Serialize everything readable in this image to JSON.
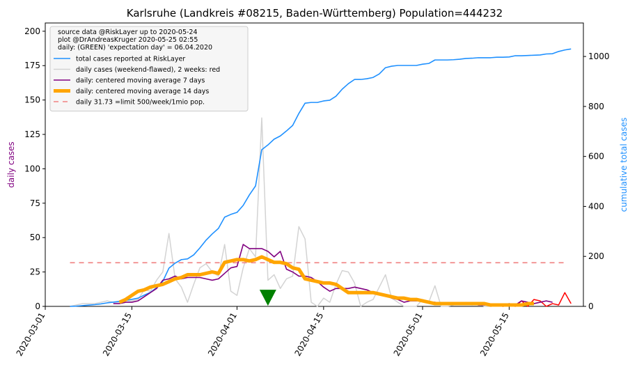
{
  "chart_data": {
    "type": "line",
    "title": "Karlsruhe (Landkreis #08215, Baden-Württemberg) Population=444232",
    "ylabel": "daily cases",
    "ylabel_color": "#800080",
    "y2label": "cumulative total cases",
    "y2label_color": "#1e90ff",
    "xlim": [
      "2020-03-01",
      "2020-05-27"
    ],
    "xticks": [
      "2020-03-01",
      "2020-03-15",
      "2020-04-01",
      "2020-04-15",
      "2020-05-01",
      "2020-05-15"
    ],
    "ylim": [
      0,
      206
    ],
    "yticks": [
      0,
      25,
      50,
      75,
      100,
      125,
      150,
      175,
      200
    ],
    "y2lim": [
      0,
      1134
    ],
    "y2ticks": [
      0,
      200,
      400,
      600,
      800,
      1000
    ],
    "legend_position": "upper left",
    "legend_header": [
      "source data @RiskLayer up to 2020-05-24",
      "plot @DrAndreasKruger 2020-05-25 02:55",
      "daily: (GREEN) 'expectation day' = 06.04.2020"
    ],
    "x": [
      "2020-03-05",
      "2020-03-06",
      "2020-03-07",
      "2020-03-08",
      "2020-03-09",
      "2020-03-10",
      "2020-03-11",
      "2020-03-12",
      "2020-03-13",
      "2020-03-14",
      "2020-03-15",
      "2020-03-16",
      "2020-03-17",
      "2020-03-18",
      "2020-03-19",
      "2020-03-20",
      "2020-03-21",
      "2020-03-22",
      "2020-03-23",
      "2020-03-24",
      "2020-03-25",
      "2020-03-26",
      "2020-03-27",
      "2020-03-28",
      "2020-03-29",
      "2020-03-30",
      "2020-03-31",
      "2020-04-01",
      "2020-04-02",
      "2020-04-03",
      "2020-04-04",
      "2020-04-05",
      "2020-04-06",
      "2020-04-07",
      "2020-04-08",
      "2020-04-09",
      "2020-04-10",
      "2020-04-11",
      "2020-04-12",
      "2020-04-13",
      "2020-04-14",
      "2020-04-15",
      "2020-04-16",
      "2020-04-17",
      "2020-04-18",
      "2020-04-19",
      "2020-04-20",
      "2020-04-21",
      "2020-04-22",
      "2020-04-23",
      "2020-04-24",
      "2020-04-25",
      "2020-04-26",
      "2020-04-27",
      "2020-04-28",
      "2020-04-29",
      "2020-04-30",
      "2020-05-01",
      "2020-05-02",
      "2020-05-03",
      "2020-05-04",
      "2020-05-05",
      "2020-05-06",
      "2020-05-07",
      "2020-05-08",
      "2020-05-09",
      "2020-05-10",
      "2020-05-11",
      "2020-05-12",
      "2020-05-13",
      "2020-05-14",
      "2020-05-15",
      "2020-05-16",
      "2020-05-17",
      "2020-05-18",
      "2020-05-19",
      "2020-05-20",
      "2020-05-21",
      "2020-05-22",
      "2020-05-23",
      "2020-05-24",
      "2020-05-25"
    ],
    "series": [
      {
        "name": "total cases reported at RiskLayer",
        "color": "#1e90ff",
        "axis": "y2",
        "width": 1.6,
        "values": [
          0,
          1,
          3,
          5,
          7,
          10,
          14,
          17,
          20,
          24,
          28,
          33,
          45,
          56,
          75,
          100,
          153,
          173,
          187,
          190,
          206,
          234,
          265,
          290,
          312,
          357,
          368,
          376,
          404,
          446,
          482,
          627,
          646,
          669,
          682,
          702,
          724,
          772,
          813,
          816,
          816,
          822,
          825,
          841,
          869,
          891,
          908,
          908,
          911,
          916,
          930,
          955,
          961,
          964,
          964,
          964,
          964,
          969,
          972,
          986,
          986,
          986,
          987,
          989,
          992,
          993,
          995,
          995,
          995,
          997,
          997,
          998,
          1003,
          1003,
          1004,
          1005,
          1006,
          1010,
          1011,
          1020,
          1026,
          1030
        ]
      },
      {
        "name": "daily cases (weekend-flawed), 2 weeks: red",
        "color": "#d3d3d3",
        "width": 1.5,
        "values": [
          0,
          1,
          2,
          2,
          2,
          3,
          4,
          3,
          3,
          4,
          4,
          5,
          12,
          11,
          19,
          25,
          53,
          20,
          14,
          3,
          16,
          28,
          31,
          25,
          22,
          45,
          11,
          8,
          28,
          42,
          36,
          137,
          19,
          23,
          13,
          20,
          22,
          58,
          49,
          3,
          0,
          6,
          3,
          16,
          26,
          25,
          17,
          0,
          3,
          5,
          14,
          23,
          6,
          3,
          0,
          0,
          0,
          5,
          3,
          15,
          0,
          0,
          1,
          2,
          3,
          1,
          2,
          0,
          0,
          null,
          null,
          null,
          null,
          null,
          null,
          null,
          null,
          null,
          null,
          null,
          null,
          null
        ]
      },
      {
        "color": "#ff0000",
        "width": 1.5,
        "x": [
          "2020-05-12",
          "2020-05-13",
          "2020-05-14",
          "2020-05-15",
          "2020-05-16",
          "2020-05-17",
          "2020-05-18",
          "2020-05-19",
          "2020-05-20",
          "2020-05-21",
          "2020-05-22",
          "2020-05-23",
          "2020-05-24",
          "2020-05-25"
        ],
        "values": [
          0,
          1,
          0,
          1,
          0,
          4,
          0,
          5,
          4,
          0,
          2,
          1,
          10,
          2
        ]
      },
      {
        "name": "daily: centered moving average 7 days",
        "color": "#800080",
        "width": 1.6,
        "values": [
          null,
          null,
          null,
          null,
          null,
          null,
          null,
          2,
          2,
          3,
          3,
          4,
          7,
          10,
          13,
          19,
          20,
          22,
          20,
          21,
          21,
          21,
          20,
          19,
          20,
          24,
          28,
          29,
          45,
          42,
          42,
          42,
          40,
          36,
          40,
          27,
          25,
          22,
          22,
          21,
          18,
          14,
          11,
          13,
          13,
          13,
          14,
          13,
          12,
          10,
          9,
          8,
          6,
          5,
          3,
          4,
          4,
          4,
          3,
          3,
          2,
          2,
          2,
          2,
          2,
          2,
          1,
          1,
          1,
          1,
          1,
          2,
          1,
          4,
          3,
          2,
          3,
          4,
          3,
          null,
          null,
          null
        ]
      },
      {
        "name": "daily: centered moving average 14 days",
        "color": "#ffa500",
        "width": 5,
        "values": [
          null,
          null,
          null,
          null,
          null,
          null,
          null,
          null,
          3,
          5,
          8,
          11,
          12,
          14,
          15,
          16,
          18,
          20,
          21,
          23,
          23,
          23,
          24,
          25,
          24,
          32,
          33,
          34,
          34,
          33,
          34,
          36,
          34,
          32,
          32,
          31,
          28,
          27,
          20,
          19,
          18,
          17,
          17,
          16,
          13,
          10,
          10,
          10,
          10,
          10,
          9,
          8,
          7,
          6,
          6,
          5,
          5,
          4,
          3,
          2,
          2,
          2,
          2,
          2,
          2,
          2,
          2,
          2,
          1,
          1,
          1,
          1,
          1,
          1,
          2,
          2,
          null,
          null,
          null,
          null,
          null,
          null
        ]
      },
      {
        "name": "daily 31.73 =limit 500/week/1mio pop.",
        "color": "#f08080",
        "width": 1.6,
        "dashed": true,
        "x": [
          "2020-03-05",
          "2020-05-24"
        ],
        "values": [
          31.73,
          31.73
        ]
      }
    ],
    "marker": {
      "x": "2020-04-06",
      "value": 6,
      "color": "#008000"
    }
  }
}
